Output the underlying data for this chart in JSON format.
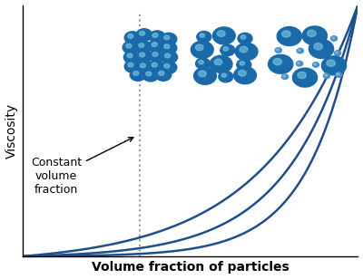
{
  "curve_color": "#1c4f8c",
  "curve_linewidth": 1.8,
  "bg_color": "#ffffff",
  "xlabel": "Volume fraction of particles",
  "ylabel": "Viscosity",
  "xlabel_fontsize": 10,
  "ylabel_fontsize": 10,
  "annotation_text": "Constant\nvolume\nfraction",
  "annotation_fontsize": 9,
  "dotted_line_x": 0.35,
  "dotted_line_color": "#999999",
  "xlim": [
    0,
    1.0
  ],
  "ylim": [
    0,
    1.0
  ],
  "particle_color_dark": "#1a6aaa",
  "particle_color_mid": "#2e8bc0",
  "particle_color_light": "#7ec8e3",
  "particle_color_tiny": "#4a90c4"
}
